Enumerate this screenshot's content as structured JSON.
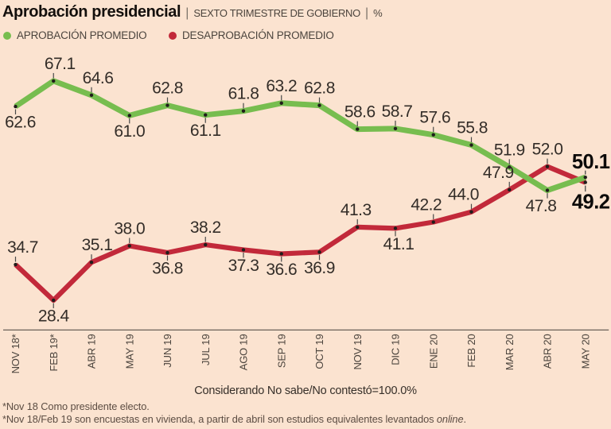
{
  "header": {
    "title": "Aprobación presidencial",
    "separator": "|",
    "subtitle": "SEXTO TRIMESTRE DE GOBIERNO",
    "unit": "%"
  },
  "legend": [
    {
      "label": "APROBACIÓN PROMEDIO",
      "color": "#77bd4f"
    },
    {
      "label": "DESAPROBACIÓN PROMEDIO",
      "color": "#c2293a"
    }
  ],
  "chart_data": {
    "type": "line",
    "title": "Aprobación presidencial | Sexto trimestre de gobierno | %",
    "categories": [
      "NOV 18*",
      "FEB 19*",
      "ABR 19",
      "MAY 19",
      "JUN 19",
      "JUL 19",
      "AGO 19",
      "SEP 19",
      "OCT 19",
      "NOV 19",
      "DIC 19",
      "ENE 20",
      "FEB 20",
      "MAR 20",
      "ABR 20",
      "MAY 20"
    ],
    "series": [
      {
        "name": "Aprobación promedio",
        "color": "#77bd4f",
        "values": [
          62.6,
          67.1,
          64.6,
          61.0,
          62.8,
          61.1,
          61.8,
          63.2,
          62.8,
          58.6,
          58.7,
          57.6,
          55.8,
          51.9,
          47.8,
          50.1
        ],
        "label_side": [
          "below",
          "above",
          "above",
          "below",
          "above",
          "below",
          "above",
          "above",
          "above",
          "above",
          "above",
          "above",
          "above",
          "above",
          "below",
          "above"
        ],
        "label_dx": [
          6,
          8,
          8,
          0,
          0,
          0,
          0,
          0,
          0,
          3,
          2,
          2,
          1,
          0,
          -8,
          0
        ]
      },
      {
        "name": "Desaprobación promedio",
        "color": "#c2293a",
        "values": [
          34.7,
          28.4,
          35.1,
          38.0,
          36.8,
          38.2,
          37.3,
          36.6,
          36.9,
          41.3,
          41.1,
          42.2,
          44.0,
          47.9,
          52.0,
          49.2
        ],
        "label_side": [
          "above",
          "below",
          "above",
          "above",
          "below",
          "above",
          "below",
          "below",
          "below",
          "above",
          "below",
          "above",
          "above",
          "above",
          "above",
          "below"
        ],
        "label_dx": [
          9,
          0,
          7,
          0,
          0,
          0,
          0,
          0,
          0,
          -2,
          4,
          -9,
          -10,
          -14,
          0,
          0
        ]
      }
    ],
    "ylim": [
      22,
      72
    ],
    "grid": false,
    "legend_position": "top-left",
    "last_point_labels_bold": true
  },
  "footer": {
    "note": "Considerando No sabe/No contestó=100.0%",
    "footnote1": "*Nov 18 Como presidente electo.",
    "footnote2_prefix": "*Nov 18/Feb 19 son encuestas en vivienda, a partir de abril son estudios equivalentes levantados ",
    "footnote2_italic": "online",
    "footnote2_suffix": "."
  }
}
